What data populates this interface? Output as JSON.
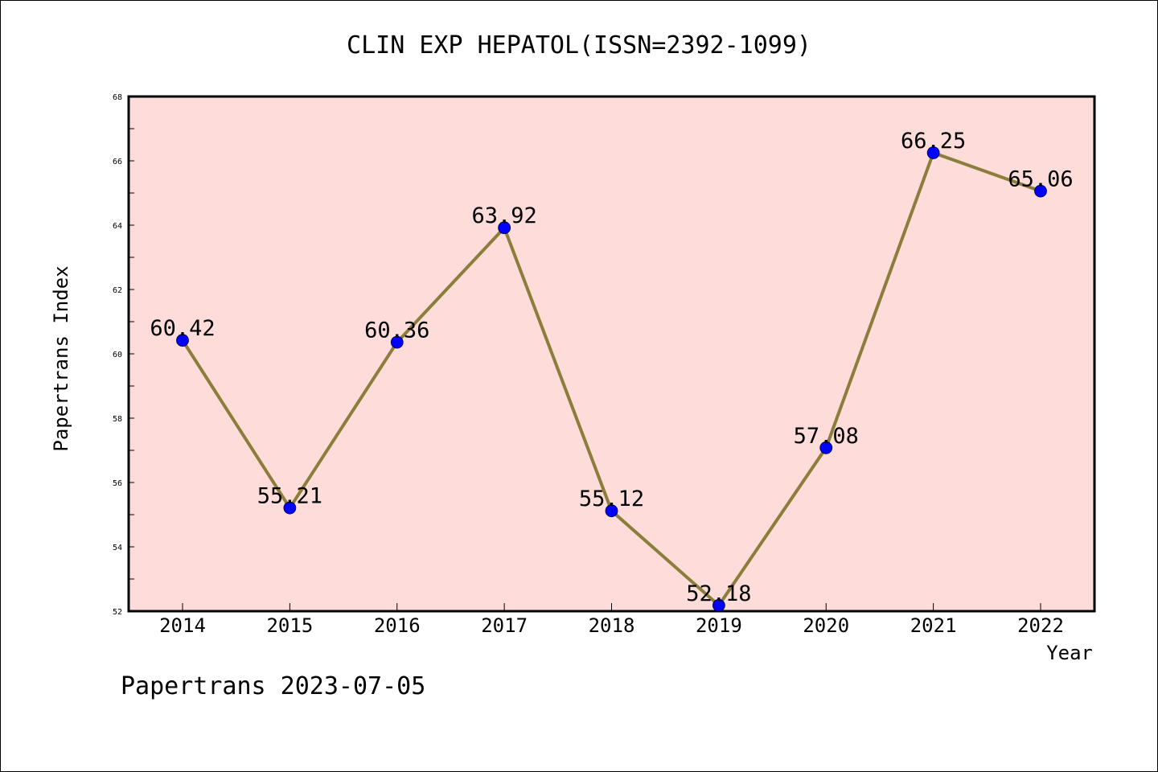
{
  "chart_data": {
    "type": "line",
    "title": "CLIN EXP HEPATOL(ISSN=2392-1099)",
    "xlabel": "Year",
    "ylabel": "Papertrans Index",
    "categories": [
      "2014",
      "2015",
      "2016",
      "2017",
      "2018",
      "2019",
      "2020",
      "2021",
      "2022"
    ],
    "series": [
      {
        "values": [
          60.42,
          55.21,
          60.36,
          63.92,
          55.12,
          52.18,
          57.08,
          66.25,
          65.06
        ]
      }
    ],
    "data_labels": [
      "60.42",
      "55.21",
      "60.36",
      "63.92",
      "55.12",
      "52.18",
      "57.08",
      "66.25",
      "65.06"
    ],
    "ylim": [
      52,
      68
    ],
    "yticks": [
      "52",
      "54",
      "56",
      "58",
      "60",
      "62",
      "64",
      "66",
      "68"
    ],
    "grid": false,
    "colors": {
      "plot_background": "#fddcd9",
      "line": "#8b7d3a",
      "marker": "#0000ff"
    }
  },
  "footer": {
    "watermark": "Papertrans 2023-07-05"
  }
}
